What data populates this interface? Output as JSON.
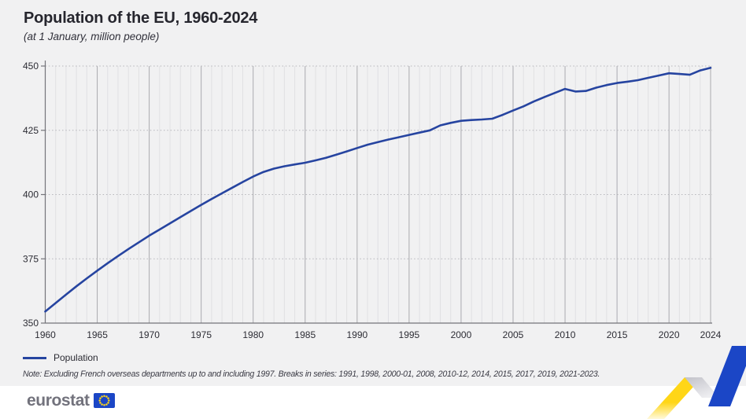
{
  "header": {
    "title": "Population of the EU, 1960-2024",
    "subtitle": "(at 1 January, million people)"
  },
  "chart_data": {
    "type": "line",
    "title": "Population of the EU, 1960-2024",
    "subtitle": "(at 1 January, million people)",
    "xlabel": "",
    "ylabel": "",
    "ylim": [
      350,
      450
    ],
    "yticks": [
      350,
      375,
      400,
      425,
      450
    ],
    "xticks": [
      1960,
      1965,
      1970,
      1975,
      1980,
      1985,
      1990,
      1995,
      2000,
      2005,
      2010,
      2015,
      2020,
      2024
    ],
    "grid": {
      "vertical_minor_every_year": true,
      "vertical_major_every_5_years": true,
      "horizontal_dotted": true
    },
    "legend_position": "bottom-left",
    "x": [
      1960,
      1961,
      1962,
      1963,
      1964,
      1965,
      1966,
      1967,
      1968,
      1969,
      1970,
      1971,
      1972,
      1973,
      1974,
      1975,
      1976,
      1977,
      1978,
      1979,
      1980,
      1981,
      1982,
      1983,
      1984,
      1985,
      1986,
      1987,
      1988,
      1989,
      1990,
      1991,
      1992,
      1993,
      1994,
      1995,
      1996,
      1997,
      1998,
      1999,
      2000,
      2001,
      2002,
      2003,
      2004,
      2005,
      2006,
      2007,
      2008,
      2009,
      2010,
      2011,
      2012,
      2013,
      2014,
      2015,
      2016,
      2017,
      2018,
      2019,
      2020,
      2021,
      2022,
      2023,
      2024
    ],
    "series": [
      {
        "name": "Population",
        "color": "#2644a0",
        "values": [
          354.5,
          357.8,
          361.1,
          364.3,
          367.4,
          370.4,
          373.3,
          376.1,
          378.8,
          381.4,
          384.0,
          386.4,
          388.8,
          391.2,
          393.6,
          396.0,
          398.3,
          400.5,
          402.7,
          404.9,
          407.0,
          408.8,
          410.1,
          411.0,
          411.7,
          412.4,
          413.3,
          414.3,
          415.5,
          416.8,
          418.1,
          419.4,
          420.4,
          421.4,
          422.3,
          423.2,
          424.1,
          425.0,
          426.9,
          427.9,
          428.7,
          429.0,
          429.2,
          429.5,
          431.0,
          432.7,
          434.3,
          436.2,
          437.9,
          439.5,
          441.1,
          440.1,
          440.3,
          441.6,
          442.6,
          443.4,
          443.9,
          444.5,
          445.4,
          446.3,
          447.2,
          446.9,
          446.6,
          448.3,
          449.3
        ]
      }
    ]
  },
  "legend": {
    "label": "Population"
  },
  "note": "Note: Excluding French overseas departments up to and including 1997. Breaks in series: 1991, 1998, 2000-01, 2008, 2010-12, 2014, 2015, 2017, 2019, 2021-2023.",
  "footer": {
    "logo_text": "eurostat"
  },
  "colors": {
    "background": "#f1f1f2",
    "line_blue": "#2644a0",
    "flag_blue": "#1b46c6",
    "star_yellow": "#ffd617",
    "ribbon_yellow": "#ffd617",
    "ribbon_blue": "#1b46c6"
  }
}
